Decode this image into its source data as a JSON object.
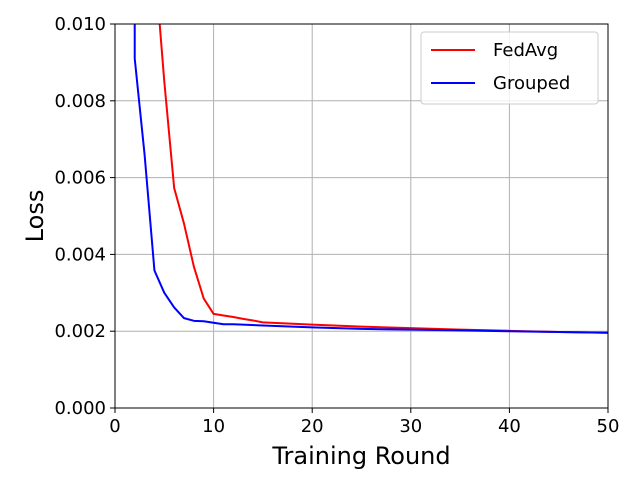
{
  "chart_data": {
    "type": "line",
    "title": "",
    "xlabel": "Training Round",
    "ylabel": "Loss",
    "xlim": [
      0,
      50
    ],
    "ylim": [
      0,
      0.01
    ],
    "xticks": [
      0,
      10,
      20,
      30,
      40,
      50
    ],
    "xtick_labels": [
      "0",
      "10",
      "20",
      "30",
      "40",
      "50"
    ],
    "yticks": [
      0,
      0.002,
      0.004,
      0.006,
      0.008,
      0.01
    ],
    "ytick_labels": [
      "0.000",
      "0.002",
      "0.004",
      "0.006",
      "0.008",
      "0.010"
    ],
    "grid": true,
    "legend_position": "top-right",
    "series": [
      {
        "name": "FedAvg",
        "color": "#ff0000",
        "x": [
          4.5,
          5,
          6,
          7,
          8,
          9,
          10,
          11,
          12,
          13,
          14,
          15,
          20,
          25,
          30,
          35,
          40,
          45,
          50
        ],
        "y": [
          0.0101,
          0.0085,
          0.00573,
          0.0048,
          0.00368,
          0.00285,
          0.00245,
          0.00241,
          0.00237,
          0.00232,
          0.00228,
          0.00223,
          0.00217,
          0.00212,
          0.00208,
          0.00204,
          0.00201,
          0.00198,
          0.00196
        ]
      },
      {
        "name": "Grouped",
        "color": "#0000ff",
        "x": [
          2,
          2,
          3,
          4,
          5,
          6,
          7,
          8,
          9,
          10,
          11,
          12,
          15,
          20,
          25,
          30,
          35,
          40,
          45,
          50
        ],
        "y": [
          0.0101,
          0.0091,
          0.0066,
          0.00358,
          0.003,
          0.00262,
          0.00234,
          0.00227,
          0.00226,
          0.00222,
          0.00218,
          0.00218,
          0.00215,
          0.0021,
          0.00206,
          0.00204,
          0.00202,
          0.002,
          0.00198,
          0.00196
        ]
      }
    ]
  }
}
